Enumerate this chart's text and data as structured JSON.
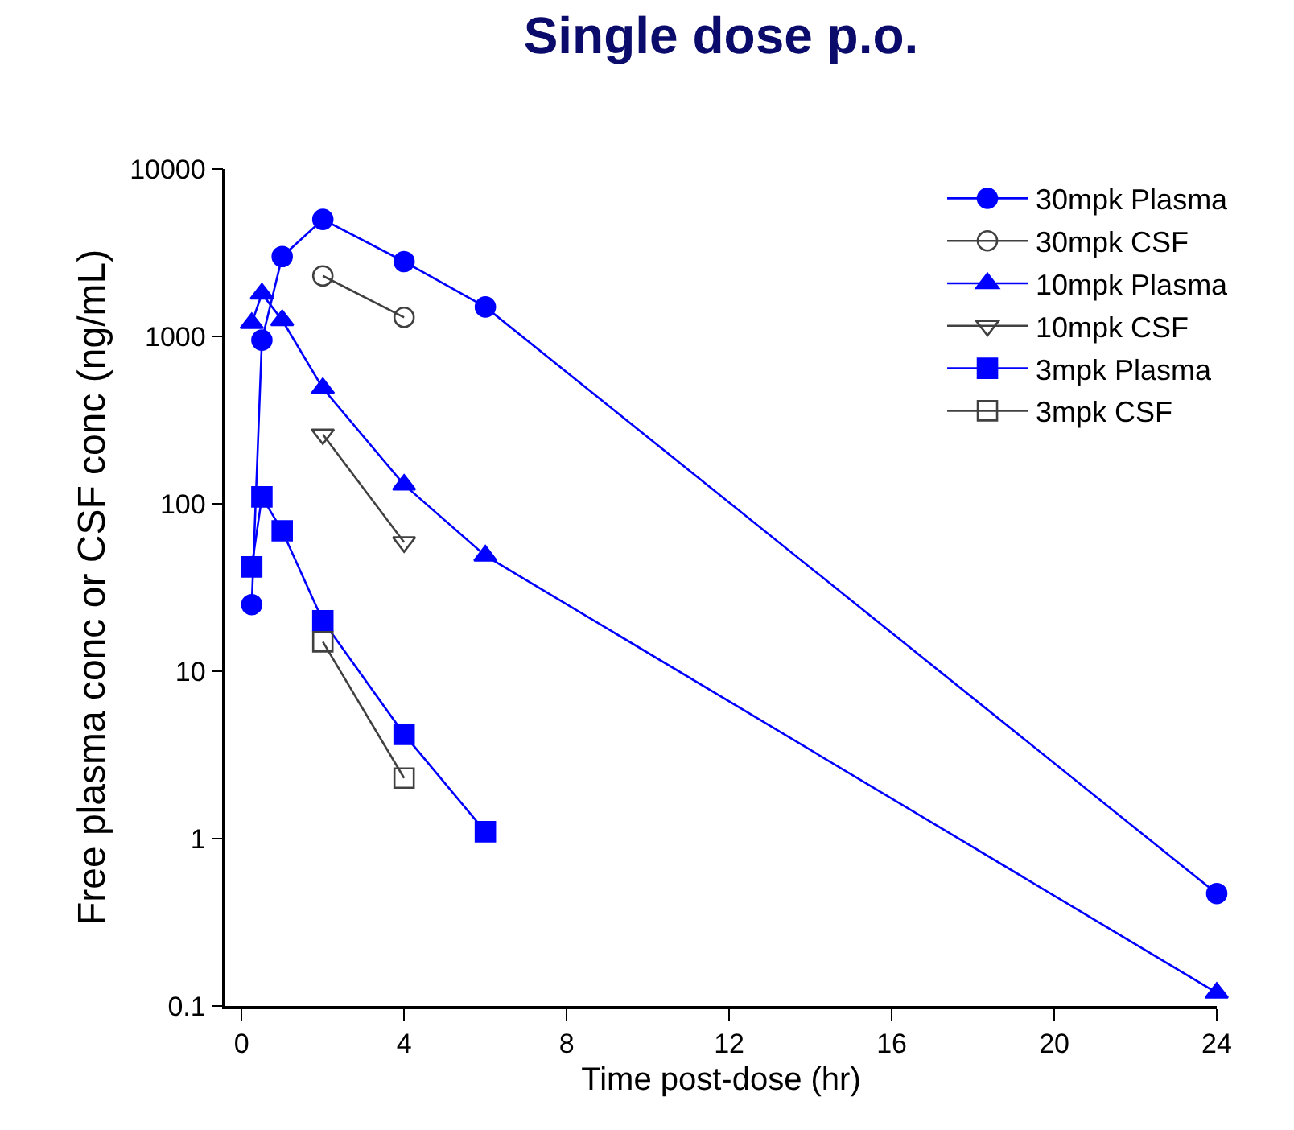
{
  "chart_data": {
    "type": "line",
    "title": "Single dose p.o.",
    "xlabel": "Time post-dose (hr)",
    "ylabel": "Free plasma conc or CSF conc (ng/mL)",
    "log": "y",
    "xlim": [
      -0.4,
      24
    ],
    "xticks": [
      0,
      4,
      8,
      12,
      16,
      20,
      24
    ],
    "ylim": [
      0.1,
      10000
    ],
    "yticks": [
      {
        "value": 0.1,
        "label": "0.1"
      },
      1,
      10,
      100,
      1000,
      10000
    ],
    "grid": false,
    "legend": "top right",
    "series": [
      {
        "name": "30mpk Plasma",
        "color": "#0000ff",
        "marker": "circle",
        "x": [
          0.25,
          0.5,
          1,
          2,
          4,
          6,
          24
        ],
        "values": [
          25,
          950,
          3000,
          5000,
          2800,
          1500,
          0.47
        ]
      },
      {
        "name": "30mpk CSF",
        "color": "#404040",
        "marker": "circle-open",
        "x": [
          2,
          4
        ],
        "values": [
          2300,
          1300
        ]
      },
      {
        "name": "10mpk Plasma",
        "color": "#0000ff",
        "marker": "triangle-up",
        "x": [
          0.25,
          0.5,
          1,
          2,
          4,
          6,
          24
        ],
        "values": [
          1200,
          1800,
          1250,
          490,
          130,
          49,
          0.12
        ]
      },
      {
        "name": "10mpk CSF",
        "color": "#404040",
        "marker": "triangle-down-open",
        "x": [
          2,
          4
        ],
        "values": [
          260,
          59
        ]
      },
      {
        "name": "3mpk Plasma",
        "color": "#0000ff",
        "marker": "square",
        "x": [
          0.25,
          0.5,
          1,
          2,
          4,
          6
        ],
        "values": [
          42,
          110,
          69,
          20,
          4.2,
          1.1
        ]
      },
      {
        "name": "3mpk CSF",
        "color": "#404040",
        "marker": "square-open",
        "x": [
          2,
          4
        ],
        "values": [
          15,
          2.3
        ]
      }
    ]
  }
}
